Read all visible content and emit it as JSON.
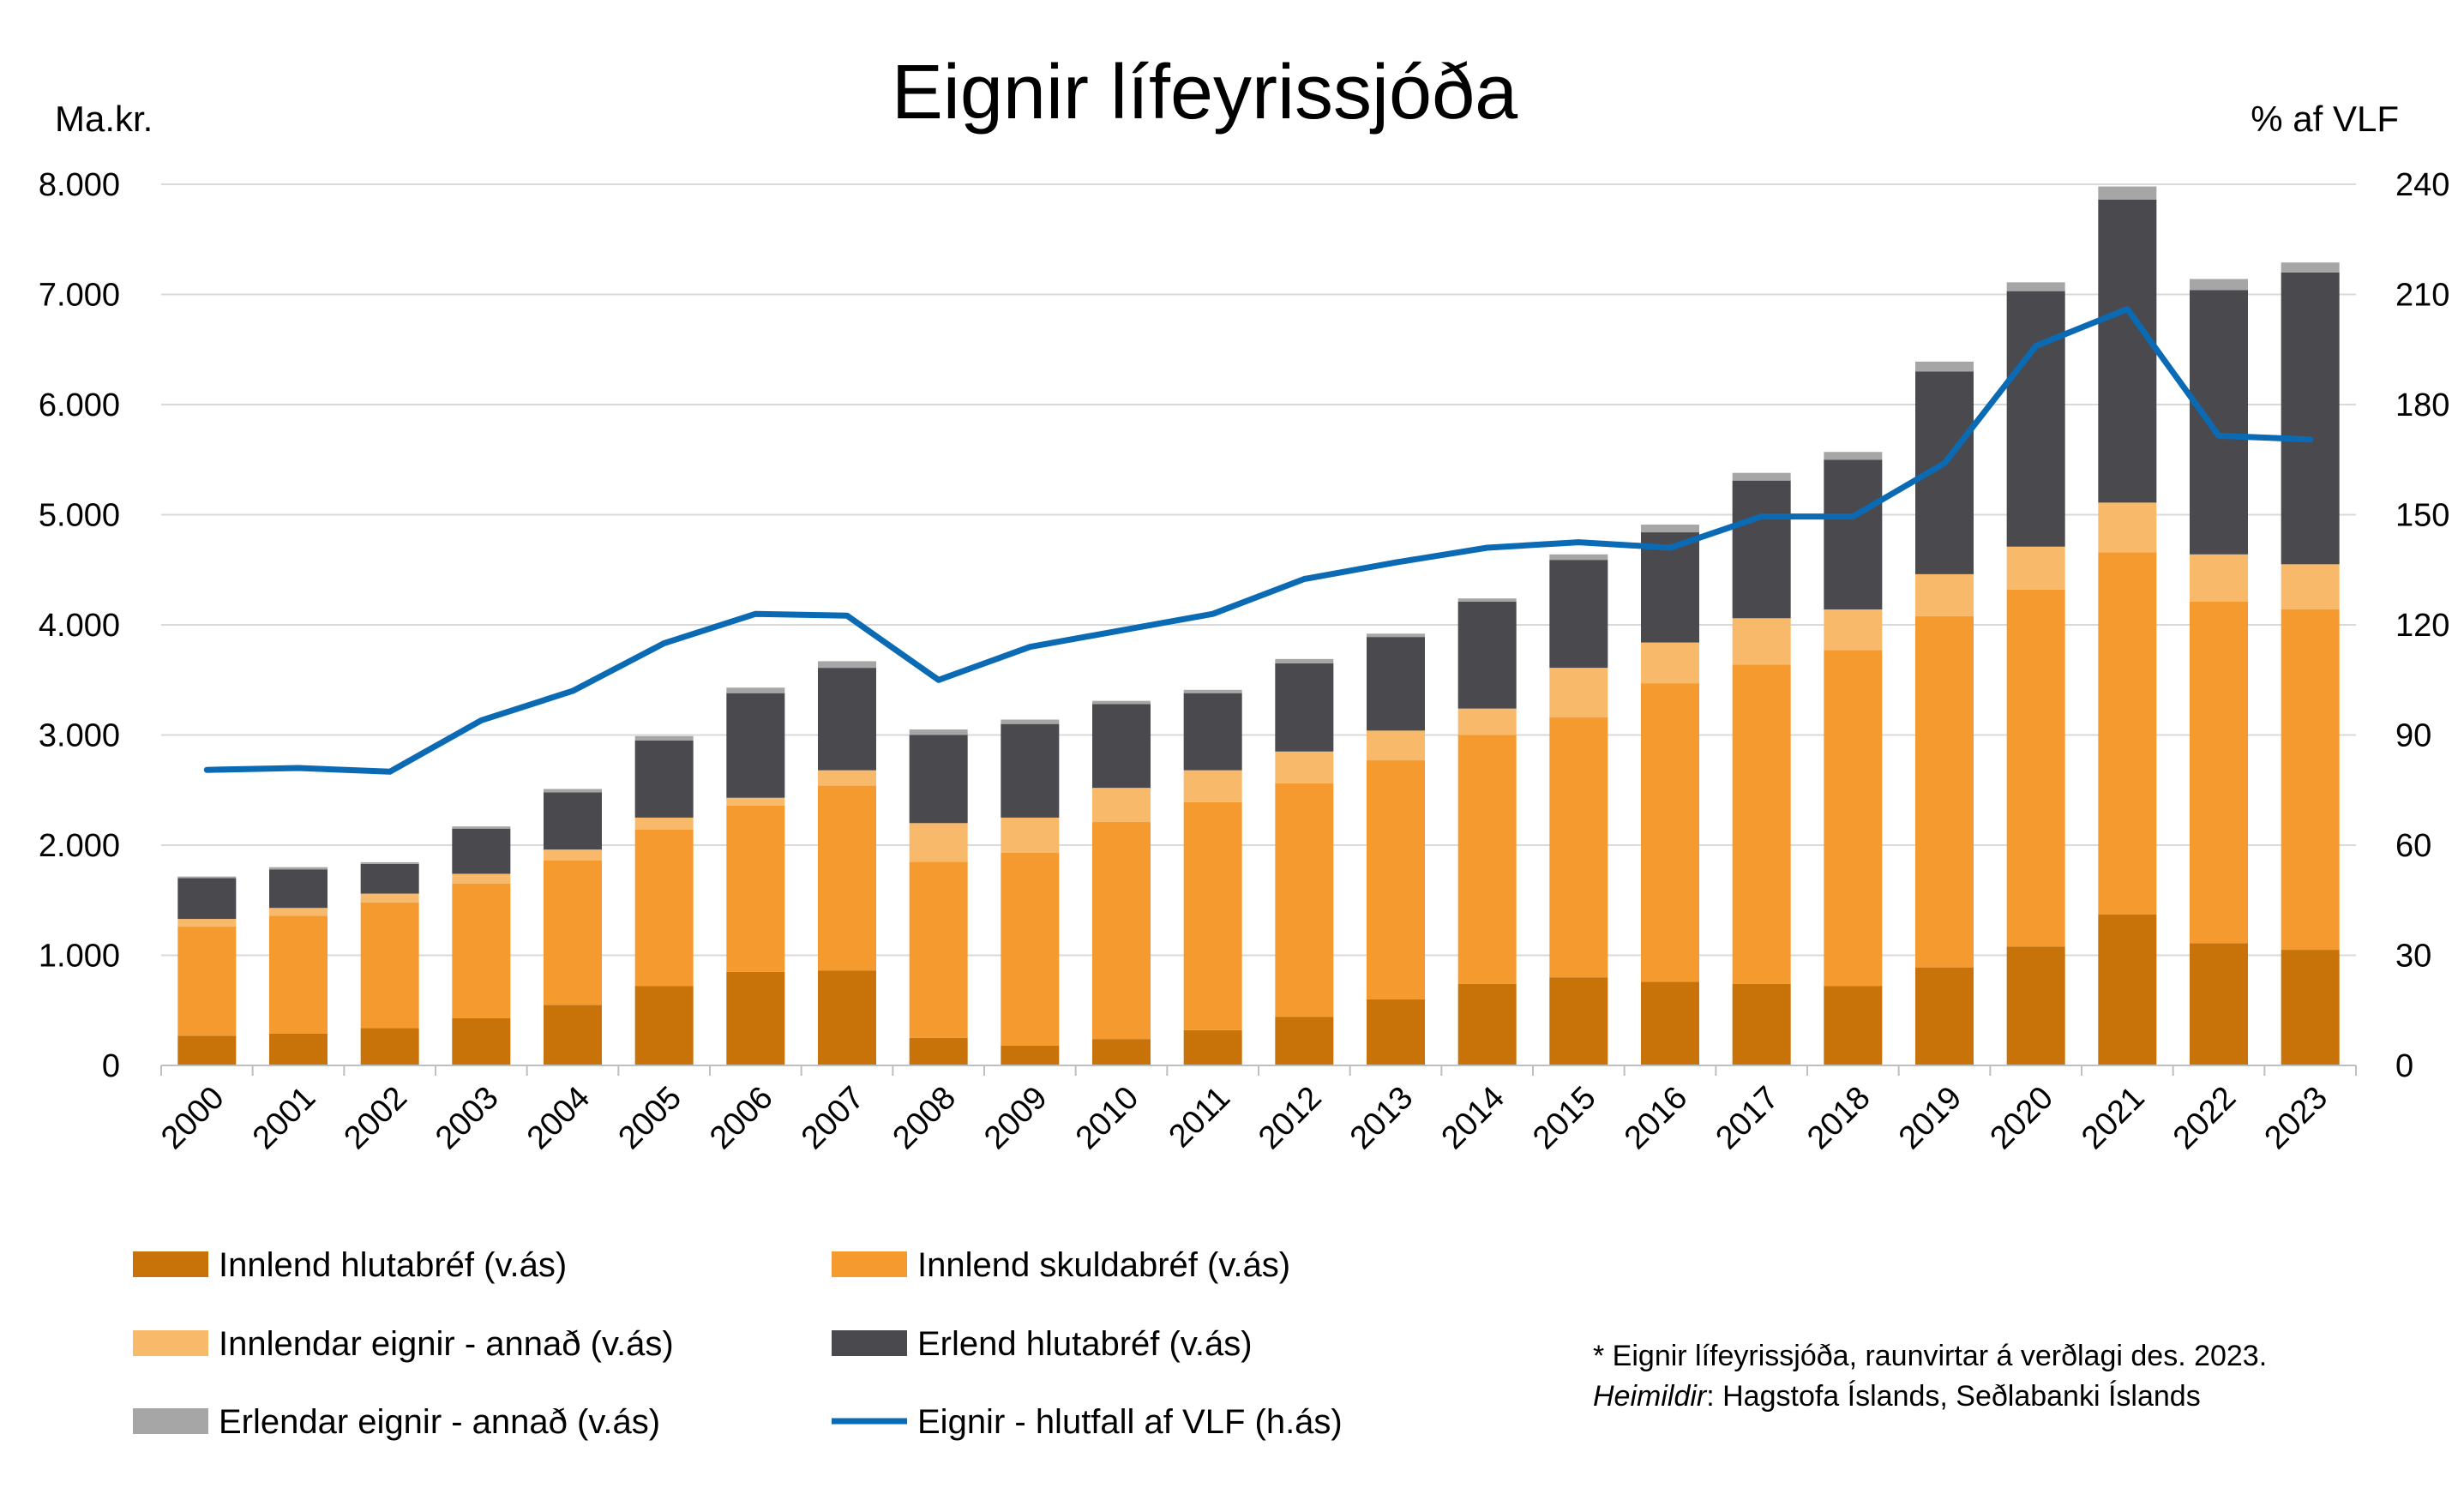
{
  "chart_data": {
    "type": "bar",
    "stacked": true,
    "title": "Eignir lífeyrissjóða",
    "ylabel_left": "Ma.kr.",
    "ylabel_right": "% af VLF",
    "ylim_left": [
      0,
      8000
    ],
    "ylim_right": [
      0,
      240
    ],
    "yticks_left": [
      "0",
      "1.000",
      "2.000",
      "3.000",
      "4.000",
      "5.000",
      "6.000",
      "7.000",
      "8.000"
    ],
    "yticks_right": [
      "0",
      "30",
      "60",
      "90",
      "120",
      "150",
      "180",
      "210",
      "240"
    ],
    "grid": true,
    "categories": [
      "2000",
      "2001",
      "2002",
      "2003",
      "2004",
      "2005",
      "2006",
      "2007",
      "2008",
      "2009",
      "2010",
      "2011",
      "2012",
      "2013",
      "2014",
      "2015",
      "2016",
      "2017",
      "2018",
      "2019",
      "2020",
      "2021",
      "2022",
      "2023"
    ],
    "series": [
      {
        "name": "Innlend hlutabréf (v.ás)",
        "color": "#c8720a",
        "axis": "left",
        "values": [
          270,
          290,
          340,
          430,
          550,
          720,
          850,
          860,
          250,
          180,
          240,
          320,
          440,
          600,
          740,
          800,
          760,
          740,
          720,
          890,
          1080,
          1370,
          1110,
          1050
        ]
      },
      {
        "name": "Innlend skuldabréf (v.ás)",
        "color": "#f59a2f",
        "axis": "left",
        "values": [
          990,
          1070,
          1140,
          1220,
          1310,
          1420,
          1510,
          1680,
          1600,
          1750,
          1970,
          2070,
          2120,
          2170,
          2260,
          2360,
          2710,
          2900,
          3050,
          3190,
          3240,
          3290,
          3100,
          3090
        ]
      },
      {
        "name": "Innlendar eignir - annað (v.ás)",
        "color": "#f9b96a",
        "axis": "left",
        "values": [
          70,
          70,
          80,
          90,
          100,
          110,
          70,
          140,
          350,
          320,
          310,
          290,
          290,
          270,
          240,
          450,
          370,
          420,
          370,
          380,
          390,
          450,
          430,
          410
        ]
      },
      {
        "name": "Erlend hlutabréf (v.ás)",
        "color": "#4a4a4e",
        "axis": "left",
        "values": [
          370,
          350,
          270,
          410,
          520,
          700,
          950,
          930,
          800,
          850,
          760,
          700,
          800,
          850,
          970,
          980,
          1000,
          1250,
          1360,
          1840,
          2320,
          2750,
          2400,
          2650
        ]
      },
      {
        "name": "Erlendar eignir - annað (v.ás)",
        "color": "#a6a6a6",
        "axis": "left",
        "values": [
          15,
          20,
          15,
          20,
          30,
          40,
          50,
          60,
          50,
          40,
          30,
          30,
          40,
          30,
          30,
          50,
          70,
          70,
          70,
          90,
          80,
          120,
          100,
          90
        ]
      },
      {
        "name": "Eignir - hlutfall af VLF (h.ás)",
        "color": "#0a6ab4",
        "axis": "right",
        "type": "line",
        "values": [
          80.5,
          81,
          80,
          94,
          102,
          115,
          123,
          122.5,
          105,
          114,
          118.5,
          123,
          132.5,
          137,
          141,
          142.5,
          141,
          149.5,
          149.5,
          164,
          196,
          206,
          171.5,
          170.5
        ]
      }
    ],
    "legend_position": "bottom",
    "notes": {
      "line1": "* Eignir lífeyrissjóða, raunvirtar á verðlagi des. 2023.",
      "line2_label": "Heimildir",
      "line2_text": ": Hagstofa Íslands, Seðlabanki Íslands"
    }
  }
}
